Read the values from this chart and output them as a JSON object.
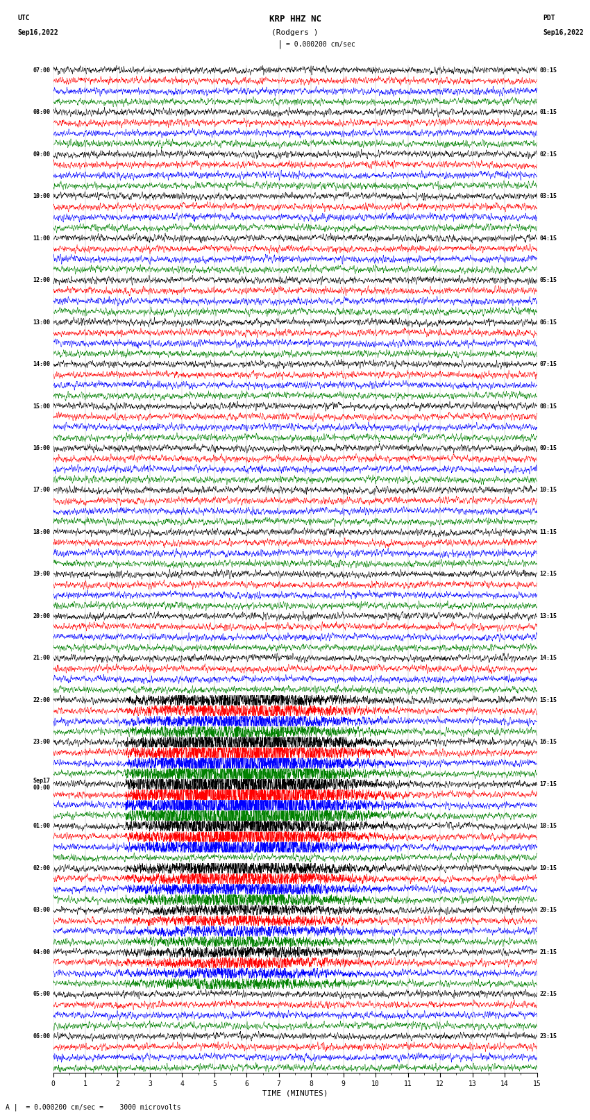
{
  "title_line1": "KRP HHZ NC",
  "title_line2": "(Rodgers )",
  "scale_text": "= 0.000200 cm/sec",
  "utc_label": "UTC",
  "utc_date": "Sep16,2022",
  "pdt_label": "PDT",
  "pdt_date": "Sep16,2022",
  "xlabel": "TIME (MINUTES)",
  "bottom_note": "= 0.000200 cm/sec =    3000 microvolts",
  "colors": [
    "black",
    "red",
    "blue",
    "green"
  ],
  "num_groups": 24,
  "minutes_per_row": 15,
  "fig_width": 8.5,
  "fig_height": 16.13,
  "left_times": [
    "07:00",
    "08:00",
    "09:00",
    "10:00",
    "11:00",
    "12:00",
    "13:00",
    "14:00",
    "15:00",
    "16:00",
    "17:00",
    "18:00",
    "19:00",
    "20:00",
    "21:00",
    "22:00",
    "23:00",
    "Sep17\n00:00",
    "01:00",
    "02:00",
    "03:00",
    "04:00",
    "05:00",
    "06:00"
  ],
  "right_times": [
    "00:15",
    "01:15",
    "02:15",
    "03:15",
    "04:15",
    "05:15",
    "06:15",
    "07:15",
    "08:15",
    "09:15",
    "10:15",
    "11:15",
    "12:15",
    "13:15",
    "14:15",
    "15:15",
    "16:15",
    "17:15",
    "18:15",
    "19:15",
    "20:15",
    "21:15",
    "22:15",
    "23:15"
  ],
  "bg_color": "white",
  "trace_linewidth": 0.35,
  "grid_color": "#aaaaaa",
  "grid_linewidth": 0.3,
  "noise_seed": 12345
}
